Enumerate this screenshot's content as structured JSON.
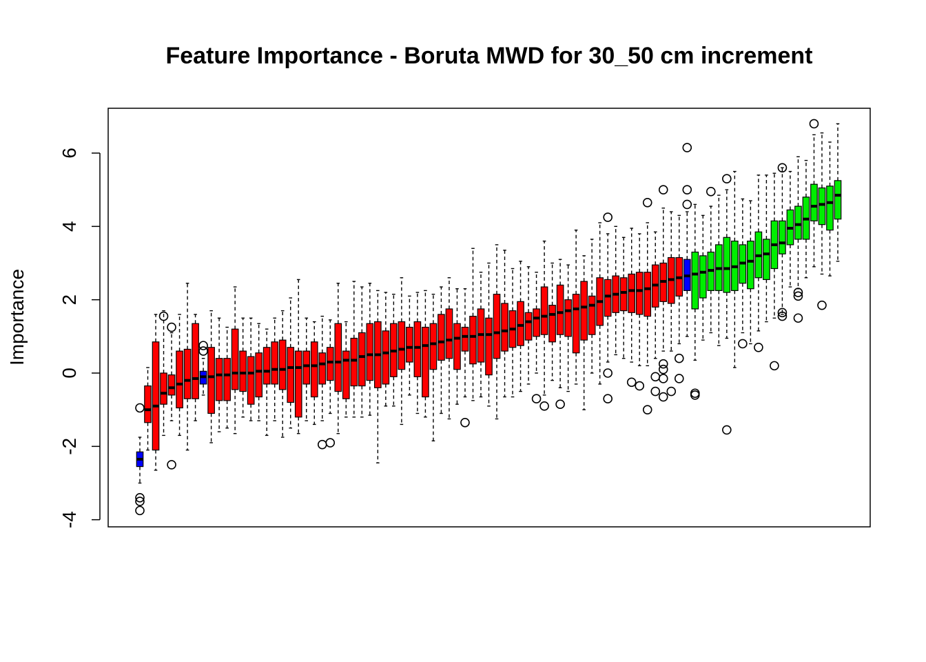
{
  "chart_data": {
    "type": "boxplot",
    "title": "Feature Importance - Boruta MWD for 30_50 cm increment",
    "xlabel": "",
    "ylabel": "Importance",
    "ylim": [
      -4.2,
      7.2
    ],
    "yticks": [
      -4,
      -2,
      0,
      2,
      4,
      6
    ],
    "ytick_labels": [
      "-4",
      "-2",
      "0",
      "2",
      "4",
      "6"
    ],
    "grid": false,
    "legend": "none",
    "colors": {
      "rejected": "#ff0000",
      "shadow": "#0000ff",
      "confirmed": "#00ee00",
      "median": "#000000",
      "whisker": "#000000",
      "outlier": "#000000"
    },
    "boxes": [
      {
        "group": "shadow",
        "median": -2.35,
        "q1": -2.55,
        "q3": -2.15,
        "lo": -3.0,
        "hi": -1.75,
        "outliers": [
          -3.4,
          -3.5,
          -3.75,
          -0.95
        ]
      },
      {
        "group": "rejected",
        "median": -1.0,
        "q1": -1.35,
        "q3": -0.35,
        "lo": -2.1,
        "hi": 0.15,
        "outliers": []
      },
      {
        "group": "rejected",
        "median": -0.9,
        "q1": -2.1,
        "q3": 0.85,
        "lo": -2.65,
        "hi": 1.6,
        "outliers": []
      },
      {
        "group": "rejected",
        "median": -0.55,
        "q1": -0.85,
        "q3": 0.0,
        "lo": -1.7,
        "hi": 1.7,
        "outliers": [
          1.55
        ]
      },
      {
        "group": "rejected",
        "median": -0.4,
        "q1": -0.6,
        "q3": -0.05,
        "lo": -1.3,
        "hi": 1.1,
        "outliers": [
          1.25,
          -2.5
        ]
      },
      {
        "group": "rejected",
        "median": -0.3,
        "q1": -0.95,
        "q3": 0.6,
        "lo": -1.7,
        "hi": 1.6,
        "outliers": []
      },
      {
        "group": "rejected",
        "median": -0.2,
        "q1": -0.7,
        "q3": 0.65,
        "lo": -2.1,
        "hi": 2.45,
        "outliers": []
      },
      {
        "group": "rejected",
        "median": -0.15,
        "q1": -0.7,
        "q3": 1.35,
        "lo": -1.3,
        "hi": 1.6,
        "outliers": []
      },
      {
        "group": "shadow",
        "median": -0.1,
        "q1": -0.3,
        "q3": 0.05,
        "lo": -0.6,
        "hi": 0.4,
        "outliers": [
          0.6,
          0.75
        ]
      },
      {
        "group": "rejected",
        "median": -0.1,
        "q1": -1.1,
        "q3": 0.7,
        "lo": -1.9,
        "hi": 1.7,
        "outliers": []
      },
      {
        "group": "rejected",
        "median": -0.05,
        "q1": -0.75,
        "q3": 0.4,
        "lo": -1.6,
        "hi": 1.5,
        "outliers": []
      },
      {
        "group": "rejected",
        "median": -0.05,
        "q1": -0.75,
        "q3": 0.4,
        "lo": -1.5,
        "hi": 1.25,
        "outliers": []
      },
      {
        "group": "rejected",
        "median": 0.0,
        "q1": -0.45,
        "q3": 1.2,
        "lo": -1.65,
        "hi": 2.35,
        "outliers": []
      },
      {
        "group": "rejected",
        "median": 0.0,
        "q1": -0.5,
        "q3": 0.6,
        "lo": -1.2,
        "hi": 1.5,
        "outliers": []
      },
      {
        "group": "rejected",
        "median": 0.0,
        "q1": -0.85,
        "q3": 0.45,
        "lo": -1.3,
        "hi": 1.5,
        "outliers": []
      },
      {
        "group": "rejected",
        "median": 0.05,
        "q1": -0.65,
        "q3": 0.55,
        "lo": -1.3,
        "hi": 1.35,
        "outliers": []
      },
      {
        "group": "rejected",
        "median": 0.05,
        "q1": -0.3,
        "q3": 0.7,
        "lo": -1.7,
        "hi": 1.2,
        "outliers": []
      },
      {
        "group": "rejected",
        "median": 0.1,
        "q1": -0.3,
        "q3": 0.85,
        "lo": -1.3,
        "hi": 1.5,
        "outliers": []
      },
      {
        "group": "rejected",
        "median": 0.1,
        "q1": -0.45,
        "q3": 0.9,
        "lo": -1.75,
        "hi": 1.7,
        "outliers": []
      },
      {
        "group": "rejected",
        "median": 0.15,
        "q1": -0.8,
        "q3": 0.7,
        "lo": -1.5,
        "hi": 2.05,
        "outliers": []
      },
      {
        "group": "rejected",
        "median": 0.15,
        "q1": -1.2,
        "q3": 0.6,
        "lo": -1.65,
        "hi": 2.55,
        "outliers": []
      },
      {
        "group": "rejected",
        "median": 0.2,
        "q1": -0.3,
        "q3": 0.6,
        "lo": -1.3,
        "hi": 1.5,
        "outliers": []
      },
      {
        "group": "rejected",
        "median": 0.2,
        "q1": -0.65,
        "q3": 0.85,
        "lo": -1.4,
        "hi": 1.4,
        "outliers": []
      },
      {
        "group": "rejected",
        "median": 0.25,
        "q1": -0.3,
        "q3": 0.55,
        "lo": -1.3,
        "hi": 1.55,
        "outliers": [
          -1.95
        ]
      },
      {
        "group": "rejected",
        "median": 0.3,
        "q1": -0.2,
        "q3": 0.7,
        "lo": -1.1,
        "hi": 1.45,
        "outliers": [
          -1.9
        ]
      },
      {
        "group": "rejected",
        "median": 0.3,
        "q1": -0.5,
        "q3": 1.35,
        "lo": -1.65,
        "hi": 2.45,
        "outliers": []
      },
      {
        "group": "rejected",
        "median": 0.35,
        "q1": -0.7,
        "q3": 0.6,
        "lo": -1.2,
        "hi": 1.4,
        "outliers": []
      },
      {
        "group": "rejected",
        "median": 0.35,
        "q1": -0.35,
        "q3": 0.95,
        "lo": -1.2,
        "hi": 2.5,
        "outliers": []
      },
      {
        "group": "rejected",
        "median": 0.45,
        "q1": -0.35,
        "q3": 1.1,
        "lo": -1.2,
        "hi": 2.35,
        "outliers": []
      },
      {
        "group": "rejected",
        "median": 0.5,
        "q1": -0.2,
        "q3": 1.35,
        "lo": -1.15,
        "hi": 2.45,
        "outliers": []
      },
      {
        "group": "rejected",
        "median": 0.5,
        "q1": -0.4,
        "q3": 1.4,
        "lo": -2.45,
        "hi": 2.25,
        "outliers": []
      },
      {
        "group": "rejected",
        "median": 0.55,
        "q1": -0.3,
        "q3": 1.15,
        "lo": -0.9,
        "hi": 2.2,
        "outliers": []
      },
      {
        "group": "rejected",
        "median": 0.6,
        "q1": -0.1,
        "q3": 1.35,
        "lo": -0.9,
        "hi": 2.15,
        "outliers": []
      },
      {
        "group": "rejected",
        "median": 0.65,
        "q1": 0.1,
        "q3": 1.4,
        "lo": -1.4,
        "hi": 2.6,
        "outliers": []
      },
      {
        "group": "rejected",
        "median": 0.7,
        "q1": 0.3,
        "q3": 1.25,
        "lo": -0.6,
        "hi": 2.1,
        "outliers": []
      },
      {
        "group": "rejected",
        "median": 0.7,
        "q1": -0.1,
        "q3": 1.4,
        "lo": -1.1,
        "hi": 2.2,
        "outliers": []
      },
      {
        "group": "rejected",
        "median": 0.75,
        "q1": -0.65,
        "q3": 1.25,
        "lo": -1.2,
        "hi": 2.25,
        "outliers": []
      },
      {
        "group": "rejected",
        "median": 0.8,
        "q1": 0.1,
        "q3": 1.35,
        "lo": -1.85,
        "hi": 2.15,
        "outliers": []
      },
      {
        "group": "rejected",
        "median": 0.85,
        "q1": 0.35,
        "q3": 1.6,
        "lo": -1.1,
        "hi": 2.35,
        "outliers": []
      },
      {
        "group": "rejected",
        "median": 0.9,
        "q1": 0.4,
        "q3": 1.75,
        "lo": -1.25,
        "hi": 2.6,
        "outliers": []
      },
      {
        "group": "rejected",
        "median": 0.95,
        "q1": 0.1,
        "q3": 1.35,
        "lo": -0.85,
        "hi": 2.3,
        "outliers": []
      },
      {
        "group": "rejected",
        "median": 1.0,
        "q1": 0.6,
        "q3": 1.25,
        "lo": -0.65,
        "hi": 2.3,
        "outliers": [
          -1.35
        ]
      },
      {
        "group": "rejected",
        "median": 1.0,
        "q1": 0.25,
        "q3": 1.55,
        "lo": -0.75,
        "hi": 3.4,
        "outliers": []
      },
      {
        "group": "rejected",
        "median": 1.05,
        "q1": 0.3,
        "q3": 1.75,
        "lo": -0.65,
        "hi": 2.75,
        "outliers": []
      },
      {
        "group": "rejected",
        "median": 1.05,
        "q1": -0.05,
        "q3": 1.5,
        "lo": -0.9,
        "hi": 3.0,
        "outliers": []
      },
      {
        "group": "rejected",
        "median": 1.1,
        "q1": 0.4,
        "q3": 2.15,
        "lo": -1.25,
        "hi": 3.5,
        "outliers": []
      },
      {
        "group": "rejected",
        "median": 1.15,
        "q1": 0.6,
        "q3": 1.9,
        "lo": -0.65,
        "hi": 3.35,
        "outliers": []
      },
      {
        "group": "rejected",
        "median": 1.2,
        "q1": 0.7,
        "q3": 1.7,
        "lo": -0.65,
        "hi": 2.85,
        "outliers": []
      },
      {
        "group": "rejected",
        "median": 1.3,
        "q1": 0.75,
        "q3": 1.95,
        "lo": -0.5,
        "hi": 3.05,
        "outliers": []
      },
      {
        "group": "rejected",
        "median": 1.4,
        "q1": 0.9,
        "q3": 1.65,
        "lo": -0.3,
        "hi": 2.9,
        "outliers": []
      },
      {
        "group": "rejected",
        "median": 1.5,
        "q1": 1.0,
        "q3": 1.75,
        "lo": 0.0,
        "hi": 2.75,
        "outliers": [
          -0.7
        ]
      },
      {
        "group": "rejected",
        "median": 1.55,
        "q1": 1.05,
        "q3": 2.35,
        "lo": -0.6,
        "hi": 3.6,
        "outliers": [
          -0.9
        ]
      },
      {
        "group": "rejected",
        "median": 1.6,
        "q1": 0.85,
        "q3": 1.85,
        "lo": -0.2,
        "hi": 3.0,
        "outliers": []
      },
      {
        "group": "rejected",
        "median": 1.65,
        "q1": 1.05,
        "q3": 2.4,
        "lo": -0.4,
        "hi": 3.1,
        "outliers": [
          -0.85
        ]
      },
      {
        "group": "rejected",
        "median": 1.7,
        "q1": 1.0,
        "q3": 2.0,
        "lo": -0.5,
        "hi": 2.95,
        "outliers": []
      },
      {
        "group": "rejected",
        "median": 1.75,
        "q1": 0.55,
        "q3": 2.15,
        "lo": -0.3,
        "hi": 3.9,
        "outliers": []
      },
      {
        "group": "rejected",
        "median": 1.8,
        "q1": 0.9,
        "q3": 2.5,
        "lo": -1.0,
        "hi": 3.2,
        "outliers": []
      },
      {
        "group": "rejected",
        "median": 1.85,
        "q1": 1.05,
        "q3": 2.1,
        "lo": 0.0,
        "hi": 3.65,
        "outliers": []
      },
      {
        "group": "rejected",
        "median": 1.95,
        "q1": 1.3,
        "q3": 2.6,
        "lo": -0.3,
        "hi": 4.1,
        "outliers": []
      },
      {
        "group": "rejected",
        "median": 2.1,
        "q1": 1.55,
        "q3": 2.55,
        "lo": 0.3,
        "hi": 3.8,
        "outliers": [
          4.25,
          0.0,
          -0.7
        ]
      },
      {
        "group": "rejected",
        "median": 2.15,
        "q1": 1.65,
        "q3": 2.65,
        "lo": 0.5,
        "hi": 4.0,
        "outliers": []
      },
      {
        "group": "rejected",
        "median": 2.2,
        "q1": 1.7,
        "q3": 2.6,
        "lo": 0.4,
        "hi": 3.7,
        "outliers": []
      },
      {
        "group": "rejected",
        "median": 2.25,
        "q1": 1.65,
        "q3": 2.7,
        "lo": 0.3,
        "hi": 3.95,
        "outliers": [
          -0.25
        ]
      },
      {
        "group": "rejected",
        "median": 2.25,
        "q1": 1.6,
        "q3": 2.75,
        "lo": 0.2,
        "hi": 3.8,
        "outliers": [
          -0.35
        ]
      },
      {
        "group": "rejected",
        "median": 2.3,
        "q1": 1.55,
        "q3": 2.75,
        "lo": 0.2,
        "hi": 4.1,
        "outliers": [
          4.65,
          -1.0
        ]
      },
      {
        "group": "rejected",
        "median": 2.4,
        "q1": 1.8,
        "q3": 2.95,
        "lo": 0.4,
        "hi": 3.85,
        "outliers": [
          -0.1,
          -0.5
        ]
      },
      {
        "group": "rejected",
        "median": 2.5,
        "q1": 1.95,
        "q3": 3.0,
        "lo": 0.6,
        "hi": 4.5,
        "outliers": [
          5.0,
          0.25,
          0.1,
          -0.15,
          -0.65
        ]
      },
      {
        "group": "rejected",
        "median": 2.55,
        "q1": 1.9,
        "q3": 3.15,
        "lo": 0.6,
        "hi": 4.4,
        "outliers": [
          -0.5
        ]
      },
      {
        "group": "rejected",
        "median": 2.6,
        "q1": 2.1,
        "q3": 3.15,
        "lo": 0.8,
        "hi": 4.3,
        "outliers": [
          0.4,
          -0.15
        ]
      },
      {
        "group": "shadow",
        "median": 2.65,
        "q1": 2.25,
        "q3": 3.1,
        "lo": 1.0,
        "hi": 4.4,
        "outliers": [
          6.15,
          5.0,
          4.6
        ]
      },
      {
        "group": "confirmed",
        "median": 2.7,
        "q1": 1.75,
        "q3": 3.3,
        "lo": 0.35,
        "hi": 4.6,
        "outliers": [
          -0.6,
          -0.55
        ]
      },
      {
        "group": "confirmed",
        "median": 2.75,
        "q1": 2.05,
        "q3": 3.2,
        "lo": 0.9,
        "hi": 4.3,
        "outliers": []
      },
      {
        "group": "confirmed",
        "median": 2.8,
        "q1": 2.25,
        "q3": 3.3,
        "lo": 1.1,
        "hi": 4.55,
        "outliers": [
          4.95
        ]
      },
      {
        "group": "confirmed",
        "median": 2.85,
        "q1": 2.25,
        "q3": 3.5,
        "lo": 0.75,
        "hi": 4.85,
        "outliers": []
      },
      {
        "group": "confirmed",
        "median": 2.85,
        "q1": 2.2,
        "q3": 3.7,
        "lo": 0.95,
        "hi": 5.0,
        "outliers": [
          5.3,
          -1.55
        ]
      },
      {
        "group": "confirmed",
        "median": 2.9,
        "q1": 2.25,
        "q3": 3.6,
        "lo": 0.15,
        "hi": 5.5,
        "outliers": []
      },
      {
        "group": "confirmed",
        "median": 3.0,
        "q1": 2.45,
        "q3": 3.5,
        "lo": 1.1,
        "hi": 4.75,
        "outliers": [
          0.8
        ]
      },
      {
        "group": "confirmed",
        "median": 3.05,
        "q1": 2.3,
        "q3": 3.6,
        "lo": 0.8,
        "hi": 4.7,
        "outliers": []
      },
      {
        "group": "confirmed",
        "median": 3.2,
        "q1": 2.6,
        "q3": 3.85,
        "lo": 1.15,
        "hi": 5.4,
        "outliers": [
          0.7
        ]
      },
      {
        "group": "confirmed",
        "median": 3.25,
        "q1": 2.55,
        "q3": 3.65,
        "lo": 1.4,
        "hi": 5.4,
        "outliers": []
      },
      {
        "group": "confirmed",
        "median": 3.5,
        "q1": 2.85,
        "q3": 4.15,
        "lo": 1.5,
        "hi": 5.45,
        "outliers": [
          0.2
        ]
      },
      {
        "group": "confirmed",
        "median": 3.55,
        "q1": 3.25,
        "q3": 4.15,
        "lo": 1.6,
        "hi": 5.6,
        "outliers": [
          5.6,
          1.65,
          1.55
        ]
      },
      {
        "group": "confirmed",
        "median": 3.95,
        "q1": 3.5,
        "q3": 4.45,
        "lo": 2.35,
        "hi": 5.5,
        "outliers": []
      },
      {
        "group": "confirmed",
        "median": 4.05,
        "q1": 3.65,
        "q3": 4.55,
        "lo": 2.3,
        "hi": 5.9,
        "outliers": [
          2.2,
          2.1,
          1.5
        ]
      },
      {
        "group": "confirmed",
        "median": 4.2,
        "q1": 3.65,
        "q3": 4.8,
        "lo": 2.6,
        "hi": 5.8,
        "outliers": []
      },
      {
        "group": "confirmed",
        "median": 4.55,
        "q1": 4.15,
        "q3": 5.15,
        "lo": 2.9,
        "hi": 6.5,
        "outliers": [
          6.8
        ]
      },
      {
        "group": "confirmed",
        "median": 4.6,
        "q1": 4.05,
        "q3": 5.05,
        "lo": 2.7,
        "hi": 6.55,
        "outliers": [
          1.85
        ]
      },
      {
        "group": "confirmed",
        "median": 4.65,
        "q1": 3.9,
        "q3": 5.1,
        "lo": 2.65,
        "hi": 6.3,
        "outliers": []
      },
      {
        "group": "confirmed",
        "median": 4.85,
        "q1": 4.2,
        "q3": 5.25,
        "lo": 3.05,
        "hi": 6.8,
        "outliers": []
      }
    ]
  }
}
